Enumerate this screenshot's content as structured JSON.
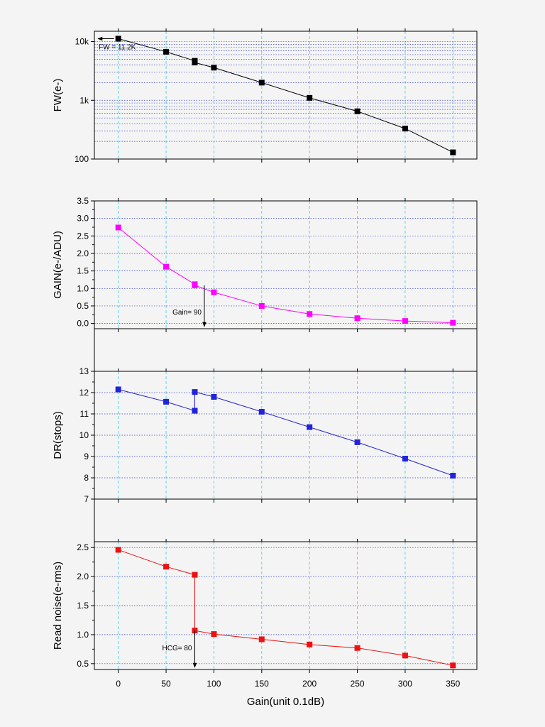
{
  "chart_data": [
    {
      "type": "line",
      "ylabel": "FW(e-)",
      "yscale": "log",
      "ylim": [
        100,
        15000
      ],
      "yticks": [
        {
          "v": 100,
          "label": "100"
        },
        {
          "v": 1000,
          "label": "1k"
        },
        {
          "v": 10000,
          "label": "10k"
        }
      ],
      "x": [
        0,
        50,
        80,
        80,
        100,
        150,
        200,
        250,
        300,
        350
      ],
      "series": [
        {
          "values": [
            11200,
            6700,
            4700,
            4400,
            3600,
            2000,
            1100,
            650,
            330,
            130
          ],
          "color": "#000000"
        }
      ],
      "annotation": {
        "text": "FW = 11.2K",
        "type": "arrow-left"
      }
    },
    {
      "type": "line",
      "ylabel": "GAIN(e-/ADU)",
      "yscale": "linear",
      "ylim": [
        -0.15,
        3.5
      ],
      "yticks": [
        {
          "v": 0,
          "label": "0.0"
        },
        {
          "v": 0.5,
          "label": "0.5"
        },
        {
          "v": 1,
          "label": "1.0"
        },
        {
          "v": 1.5,
          "label": "1.5"
        },
        {
          "v": 2,
          "label": "2.0"
        },
        {
          "v": 2.5,
          "label": "2.5"
        },
        {
          "v": 3,
          "label": "3.0"
        },
        {
          "v": 3.5,
          "label": "3.5"
        }
      ],
      "x": [
        0,
        50,
        80,
        80,
        100,
        150,
        200,
        250,
        300,
        350
      ],
      "series": [
        {
          "values": [
            2.74,
            1.62,
            1.12,
            1.09,
            0.89,
            0.5,
            0.27,
            0.15,
            0.07,
            0.02
          ],
          "color": "#ff00ff"
        }
      ],
      "annotation": {
        "text": "Gain= 90",
        "type": "arrow-down",
        "x": 90
      }
    },
    {
      "type": "line",
      "ylabel": "DR(stops)",
      "yscale": "linear",
      "ylim": [
        7,
        13
      ],
      "yticks": [
        {
          "v": 7,
          "label": "7"
        },
        {
          "v": 8,
          "label": "8"
        },
        {
          "v": 9,
          "label": "9"
        },
        {
          "v": 10,
          "label": "10"
        },
        {
          "v": 11,
          "label": "11"
        },
        {
          "v": 12,
          "label": "12"
        },
        {
          "v": 13,
          "label": "13"
        }
      ],
      "x": [
        0,
        50,
        80,
        80,
        100,
        150,
        200,
        250,
        300,
        350
      ],
      "series": [
        {
          "values": [
            12.15,
            11.57,
            11.15,
            12.03,
            11.8,
            11.1,
            10.38,
            9.67,
            8.9,
            8.1
          ],
          "color": "#2222dd"
        }
      ]
    },
    {
      "type": "line",
      "ylabel": "Read noise(e-rms)",
      "xlabel": "Gain(unit 0.1dB)",
      "yscale": "linear",
      "ylim": [
        0.4,
        2.6
      ],
      "yticks": [
        {
          "v": 0.5,
          "label": "0.5"
        },
        {
          "v": 1,
          "label": "1.0"
        },
        {
          "v": 1.5,
          "label": "1.5"
        },
        {
          "v": 2,
          "label": "2.0"
        },
        {
          "v": 2.5,
          "label": "2.5"
        }
      ],
      "x": [
        0,
        50,
        80,
        80,
        100,
        150,
        200,
        250,
        300,
        350
      ],
      "series": [
        {
          "values": [
            2.46,
            2.17,
            2.03,
            1.07,
            1.01,
            0.92,
            0.83,
            0.77,
            0.64,
            0.47
          ],
          "color": "#ee1111"
        }
      ],
      "annotation": {
        "text": "HCG= 80",
        "type": "arrow-down",
        "x": 80
      }
    }
  ],
  "xaxis": {
    "xlim": [
      -25,
      375
    ],
    "ticks": [
      {
        "v": 0,
        "label": "0"
      },
      {
        "v": 50,
        "label": "50"
      },
      {
        "v": 100,
        "label": "100"
      },
      {
        "v": 150,
        "label": "150"
      },
      {
        "v": 200,
        "label": "200"
      },
      {
        "v": 250,
        "label": "250"
      },
      {
        "v": 300,
        "label": "300"
      },
      {
        "v": 350,
        "label": "350"
      }
    ],
    "grid": true
  }
}
